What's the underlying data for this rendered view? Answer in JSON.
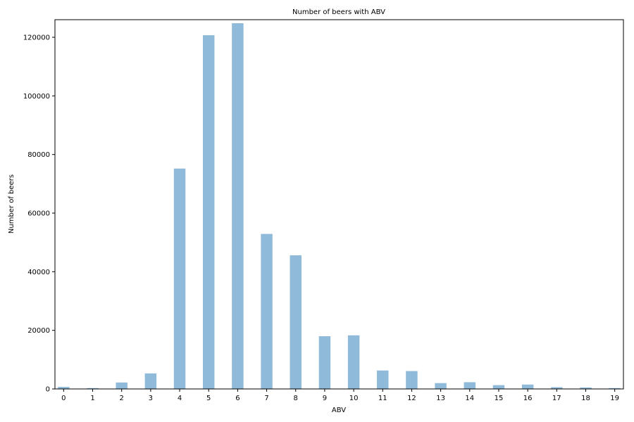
{
  "chart_data": {
    "type": "bar",
    "title": "Number of beers with ABV",
    "xlabel": "ABV",
    "ylabel": "Number of beers",
    "categories": [
      "0",
      "1",
      "2",
      "3",
      "4",
      "5",
      "6",
      "7",
      "8",
      "9",
      "10",
      "11",
      "12",
      "13",
      "14",
      "15",
      "16",
      "17",
      "18",
      "19"
    ],
    "values": [
      700,
      300,
      2200,
      5300,
      75200,
      120700,
      124800,
      52900,
      45600,
      18000,
      18300,
      6300,
      6100,
      2000,
      2300,
      1300,
      1500,
      600,
      500,
      300
    ],
    "ylim": [
      0,
      126000
    ],
    "yticks": [
      0,
      20000,
      40000,
      60000,
      80000,
      100000,
      120000
    ],
    "bar_color": "#8fbad9",
    "grid": false,
    "legend": false
  }
}
